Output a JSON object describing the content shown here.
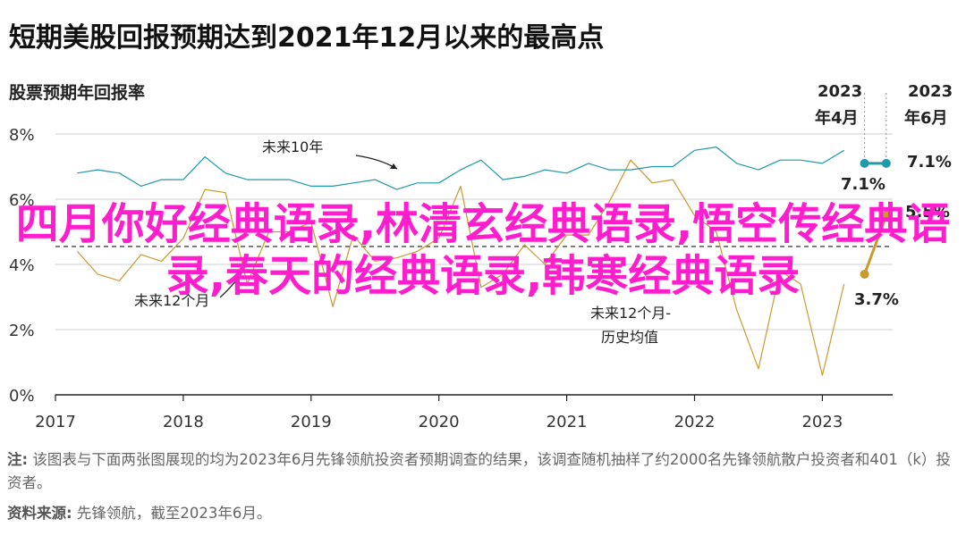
{
  "title": "短期美股回报预期达到2021年12月以来的最高点",
  "subtitle": "股票预期年回报率",
  "overlay_text": "四月你好经典语录,林清玄经典语录,悟空传经典语录,春天的经典语录,韩寒经典语录",
  "note": {
    "note_label": "注:",
    "note_text": "该图表与下面两张图展现的均为2023年6月先锋领航投资者预期调查的结果，该调查随机抽样了约2000名先锋领航散户投资者和401（k）投资者。",
    "source_label": "资料来源:",
    "source_text": "先锋领航，截至2023年6月。"
  },
  "colors": {
    "teal": "#1f9aa8",
    "gold": "#c99a2e",
    "overlay": "#ff1dcd"
  },
  "chart_data": {
    "type": "line",
    "x_ticks": [
      "2017",
      "2018",
      "2019",
      "2020",
      "2021",
      "2022",
      "2023"
    ],
    "y_ticks": [
      "0%",
      "2%",
      "4%",
      "6%",
      "8%"
    ],
    "ylim": [
      0,
      8
    ],
    "xlim": [
      2017.0,
      2023.55
    ],
    "series": [
      {
        "name": "未来12个月",
        "x": [
          2017.17,
          2017.33,
          2017.5,
          2017.67,
          2017.83,
          2018.0,
          2018.17,
          2018.33,
          2018.5,
          2018.67,
          2018.83,
          2019.0,
          2019.17,
          2019.33,
          2019.5,
          2019.67,
          2019.83,
          2020.0,
          2020.17,
          2020.33,
          2020.5,
          2020.67,
          2020.83,
          2021.0,
          2021.17,
          2021.33,
          2021.5,
          2021.67,
          2021.83,
          2022.0,
          2022.17,
          2022.33,
          2022.5,
          2022.67,
          2022.83,
          2023.0,
          2023.17,
          2023.33,
          2023.5
        ],
        "y": [
          4.4,
          3.7,
          3.5,
          4.3,
          4.1,
          4.8,
          6.3,
          6.2,
          3.4,
          5.0,
          5.0,
          5.3,
          2.7,
          4.9,
          4.1,
          4.2,
          4.4,
          4.8,
          6.4,
          3.3,
          3.7,
          4.6,
          4.0,
          4.9,
          4.9,
          5.9,
          7.2,
          6.5,
          6.6,
          5.5,
          5.0,
          2.6,
          0.8,
          3.8,
          3.4,
          0.6,
          3.4,
          3.7,
          5.5
        ]
      },
      {
        "name": "未来10年",
        "x": [
          2017.17,
          2017.33,
          2017.5,
          2017.67,
          2017.83,
          2018.0,
          2018.17,
          2018.33,
          2018.5,
          2018.67,
          2018.83,
          2019.0,
          2019.17,
          2019.33,
          2019.5,
          2019.67,
          2019.83,
          2020.0,
          2020.17,
          2020.33,
          2020.5,
          2020.67,
          2020.83,
          2021.0,
          2021.17,
          2021.33,
          2021.5,
          2021.67,
          2021.83,
          2022.0,
          2022.17,
          2022.33,
          2022.5,
          2022.67,
          2022.83,
          2023.0,
          2023.17,
          2023.33,
          2023.5
        ],
        "y": [
          6.8,
          6.9,
          6.8,
          6.4,
          6.6,
          6.6,
          7.3,
          6.8,
          6.6,
          6.6,
          6.6,
          6.4,
          6.4,
          6.5,
          6.6,
          6.3,
          6.5,
          6.5,
          6.9,
          7.2,
          6.6,
          6.7,
          6.9,
          6.8,
          7.1,
          6.9,
          6.9,
          7.0,
          7.0,
          7.5,
          7.6,
          7.1,
          6.9,
          7.2,
          7.2,
          7.1,
          7.5,
          7.1,
          7.1
        ]
      }
    ],
    "reference_line": {
      "name": "未来12个月-历史均值",
      "y": 4.55
    },
    "labels": {
      "series10": "未来10年",
      "series12": "未来12个月",
      "avg_line1": "未来12个月-",
      "avg_line2": "历史均值",
      "marker_apr_year": "2023",
      "marker_apr_month": "年4月",
      "marker_jun_year": "2023",
      "marker_jun_month": "年6月",
      "val_10_apr": "7.1%",
      "val_10_jun": "7.1%",
      "val_12_jun": "5.5%",
      "val_12_apr": "3.7%"
    }
  }
}
